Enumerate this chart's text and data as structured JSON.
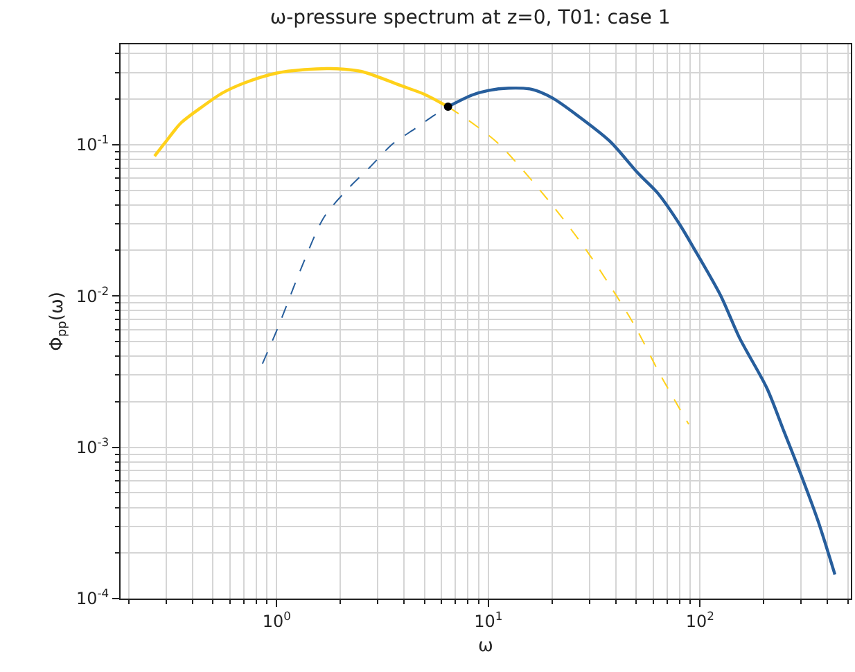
{
  "chart_data": {
    "type": "line",
    "title": "ω-pressure spectrum at z=0, T01: case 1",
    "xlabel": "ω",
    "ylabel": "Φ$_{pp}$(ω)",
    "log": "xy",
    "grid": true,
    "xlim": [
      0.183,
      516
    ],
    "ylim": [
      0.0001,
      0.46
    ],
    "xticks": [
      {
        "value": 1,
        "label": "10$^{0}$"
      },
      {
        "value": 10,
        "label": "10$^{1}$"
      },
      {
        "value": 100,
        "label": "10$^{2}$"
      }
    ],
    "yticks": [
      {
        "value": 0.0001,
        "label": "10$^{-4}$"
      },
      {
        "value": 0.001,
        "label": "10$^{-3}$"
      },
      {
        "value": 0.01,
        "label": "10$^{-2}$"
      },
      {
        "value": 0.1,
        "label": "10$^{-1}$"
      }
    ],
    "series": [
      {
        "color": "#ffd11a",
        "line_style": "solid",
        "marker": "none",
        "x": [
          0.265,
          0.3,
          0.353,
          0.45,
          0.553,
          0.7,
          1.0,
          1.35,
          1.79,
          2.5,
          3.91,
          5,
          6.45
        ],
        "values": [
          0.084,
          0.105,
          0.139,
          0.18,
          0.219,
          0.255,
          0.297,
          0.313,
          0.318,
          0.305,
          0.244,
          0.215,
          0.178
        ]
      },
      {
        "color": "#ffd11a",
        "line_style": "dashed",
        "marker": "none",
        "x": [
          6.45,
          8.33,
          11.3,
          20,
          30,
          48.4,
          65,
          88.4
        ],
        "values": [
          0.178,
          0.14,
          0.1,
          0.04,
          0.0188,
          0.0066,
          0.003,
          0.00142
        ]
      },
      {
        "color": "#275e9c",
        "line_style": "dashed",
        "marker": "none",
        "x": [
          0.857,
          1.01,
          1.3,
          1.67,
          2.2,
          2.76,
          3.5,
          4.56,
          5.5,
          6.45
        ],
        "values": [
          0.00357,
          0.0061,
          0.015,
          0.033,
          0.052,
          0.071,
          0.1,
          0.129,
          0.155,
          0.178
        ]
      },
      {
        "color": "#275e9c",
        "line_style": "solid",
        "marker": "none",
        "x": [
          6.45,
          8.33,
          10,
          12.5,
          16,
          20,
          26.5,
          37.6,
          50.8,
          63,
          79.8,
          92.9,
          125,
          153.5,
          207,
          250,
          295,
          360,
          434
        ],
        "values": [
          0.178,
          0.212,
          0.228,
          0.236,
          0.232,
          0.204,
          0.155,
          0.105,
          0.065,
          0.048,
          0.03,
          0.021,
          0.0101,
          0.0053,
          0.00246,
          0.00126,
          0.0007,
          0.00033,
          0.000144
        ]
      },
      {
        "type": "scatter",
        "color": "#000000",
        "marker": "circle",
        "x": [
          6.45
        ],
        "values": [
          0.178
        ]
      }
    ]
  }
}
